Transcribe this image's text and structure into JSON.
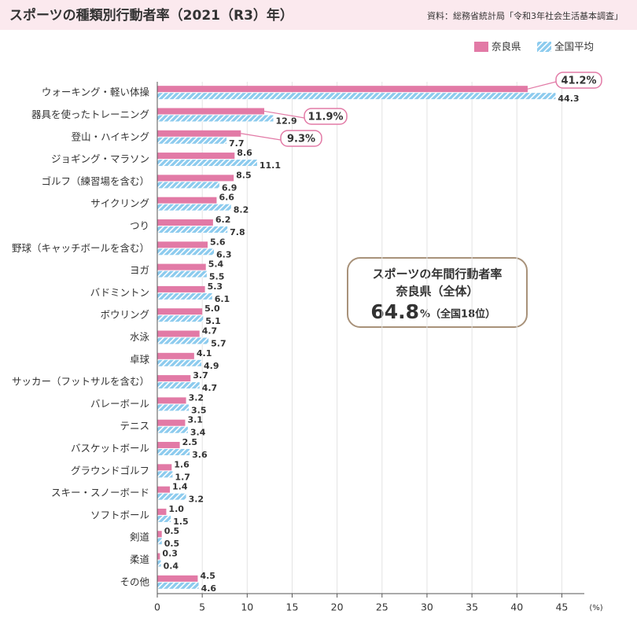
{
  "chart_data": {
    "type": "hbar",
    "title": "スポーツの種類別行動者率（2021（R3）年）",
    "source": "資料：総務省統計局「令和3年社会生活基本調査」",
    "x_unit": "(%)",
    "categories": [
      "ウォーキング・軽い体操",
      "器具を使ったトレーニング",
      "登山・ハイキング",
      "ジョギング・マラソン",
      "ゴルフ（練習場を含む）",
      "サイクリング",
      "つり",
      "野球（キャッチボールを含む）",
      "ヨガ",
      "バドミントン",
      "ボウリング",
      "水泳",
      "卓球",
      "サッカー（フットサルを含む）",
      "バレーボール",
      "テニス",
      "バスケットボール",
      "グラウンドゴルフ",
      "スキー・スノーボード",
      "ソフトボール",
      "剣道",
      "柔道",
      "その他"
    ],
    "series": [
      {
        "name": "奈良県",
        "color": "#e27aa6",
        "values": [
          41.2,
          11.9,
          9.3,
          8.6,
          8.5,
          6.6,
          6.2,
          5.6,
          5.4,
          5.3,
          5.0,
          4.7,
          4.1,
          3.7,
          3.2,
          3.1,
          2.5,
          1.6,
          1.4,
          1.0,
          0.5,
          0.3,
          4.5
        ],
        "value_labels": [
          "41.2%",
          "11.9%",
          "9.3%",
          "8.6",
          "8.5",
          "6.6",
          "6.2",
          "5.6",
          "5.4",
          "5.3",
          "5.0",
          "4.7",
          "4.1",
          "3.7",
          "3.2",
          "3.1",
          "2.5",
          "1.6",
          "1.4",
          "1.0",
          "0.5",
          "0.3",
          "4.5"
        ]
      },
      {
        "name": "全国平均",
        "color": "#8ccbee",
        "values": [
          44.3,
          12.9,
          7.7,
          11.1,
          6.9,
          8.2,
          7.8,
          6.3,
          5.5,
          6.1,
          5.1,
          5.7,
          4.9,
          4.7,
          3.5,
          3.4,
          3.6,
          1.7,
          3.2,
          1.5,
          0.5,
          0.4,
          4.6
        ]
      }
    ],
    "xlim": [
      0,
      47.5
    ],
    "xticks": [
      0,
      5,
      10,
      15,
      20,
      25,
      30,
      35,
      40,
      45
    ],
    "grid": true,
    "annotation": {
      "lines": [
        "スポーツの年間行動者率",
        "奈良県（全体）"
      ],
      "value": 64.8,
      "suffix": "%（全国18位）"
    }
  }
}
